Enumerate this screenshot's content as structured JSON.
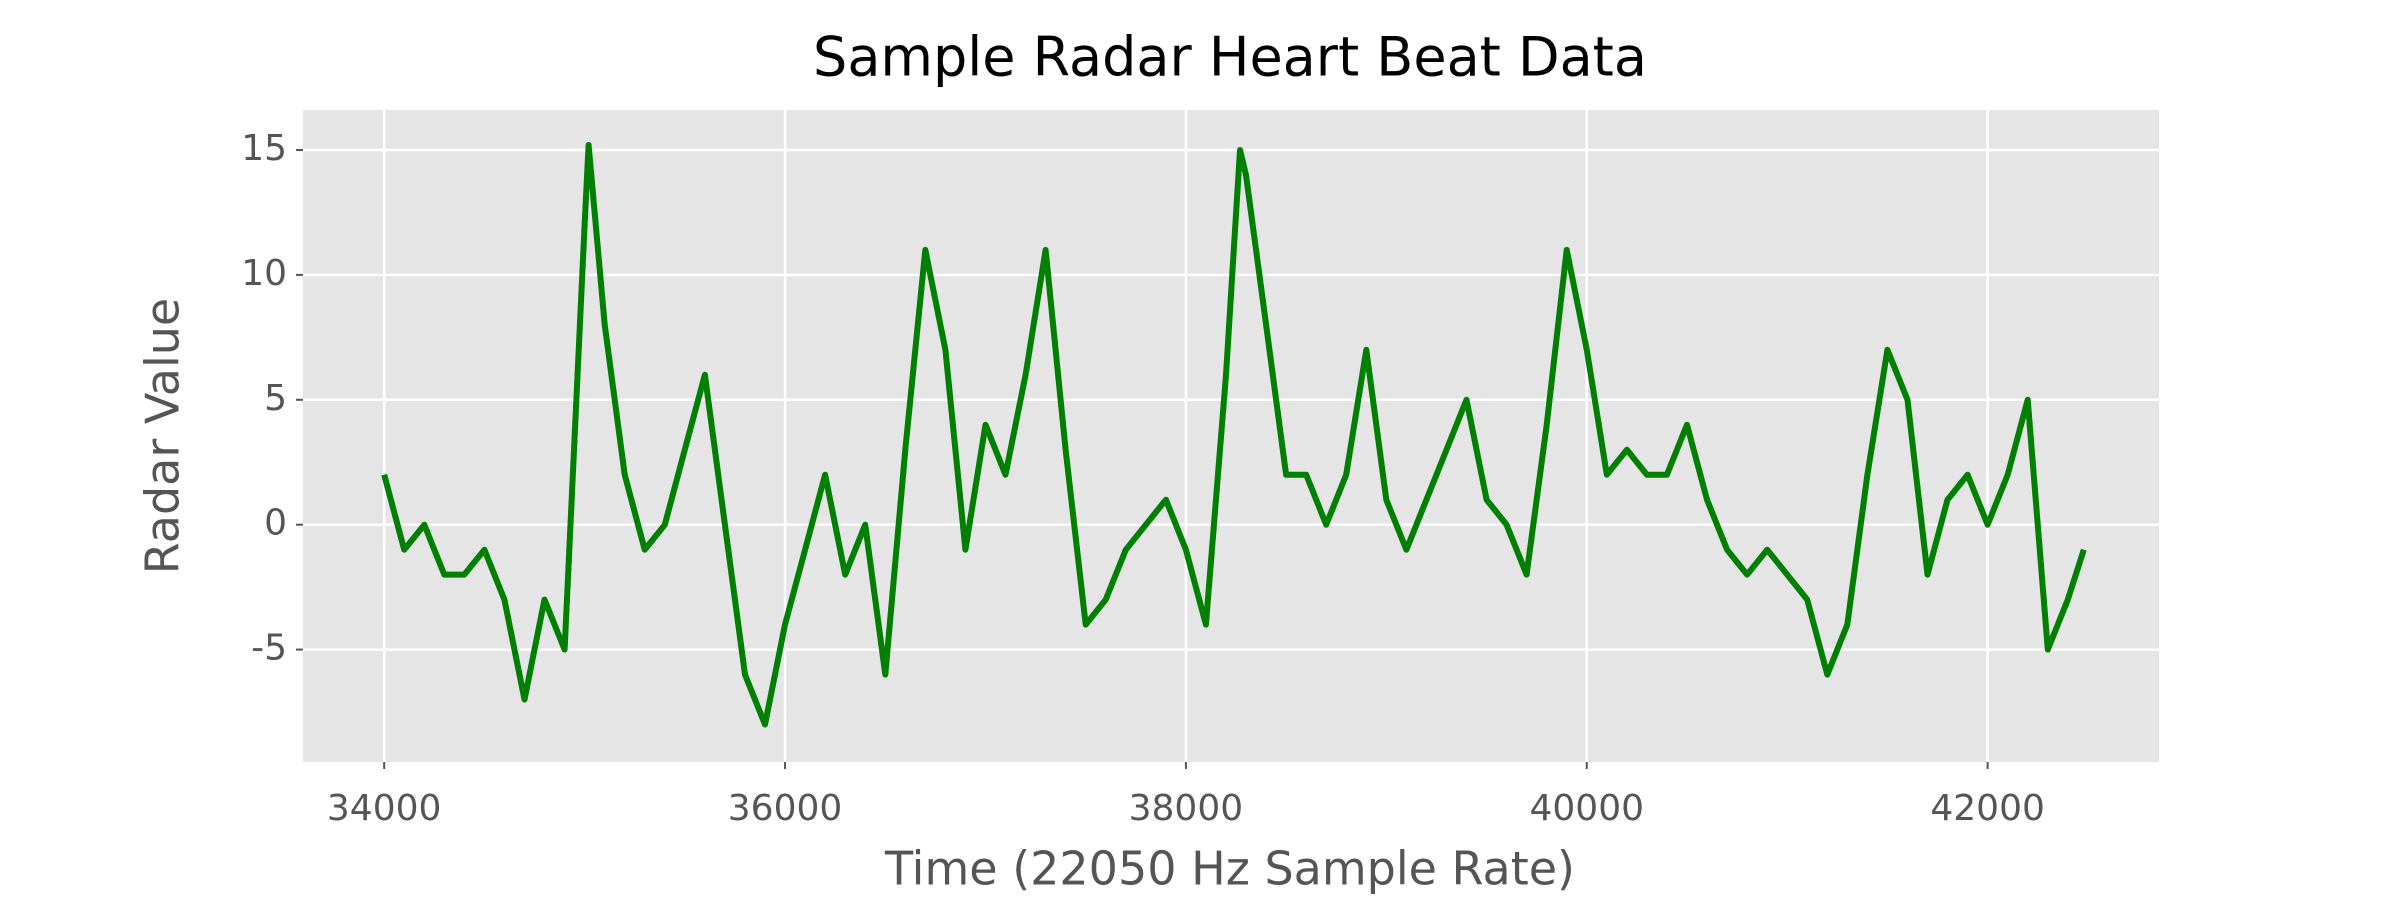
{
  "chart_data": {
    "type": "line",
    "title": "Sample Radar Heart Beat Data",
    "x_label": "Time (22050 Hz Sample Rate)",
    "y_label": "Radar Value",
    "xlim": [
      33595,
      42855
    ],
    "ylim": [
      -9.5,
      16.6
    ],
    "xticks": [
      34000,
      36000,
      38000,
      40000,
      42000
    ],
    "yticks": [
      -5,
      0,
      5,
      10,
      15
    ],
    "grid": true,
    "series": [
      {
        "name": "Radar",
        "color": "#008000",
        "x": [
          34000,
          34100,
          34200,
          34300,
          34400,
          34500,
          34600,
          34700,
          34800,
          34900,
          35000,
          35020,
          35100,
          35200,
          35300,
          35400,
          35500,
          35600,
          35700,
          35800,
          35900,
          36000,
          36100,
          36200,
          36300,
          36400,
          36500,
          36600,
          36700,
          36800,
          36900,
          37000,
          37100,
          37200,
          37300,
          37400,
          37500,
          37600,
          37700,
          37800,
          37900,
          38000,
          38100,
          38200,
          38270,
          38300,
          38400,
          38500,
          38600,
          38700,
          38800,
          38900,
          39000,
          39100,
          39200,
          39300,
          39400,
          39500,
          39600,
          39700,
          39800,
          39900,
          40000,
          40100,
          40200,
          40300,
          40400,
          40500,
          40600,
          40700,
          40800,
          40900,
          41000,
          41100,
          41200,
          41300,
          41400,
          41500,
          41600,
          41700,
          41800,
          41900,
          42000,
          42100,
          42200,
          42300,
          42400,
          42480
        ],
        "values": [
          2,
          -1,
          0,
          -2,
          -2,
          -1,
          -3,
          -7,
          -3,
          -5,
          12,
          15.2,
          8,
          2,
          -1,
          0,
          3,
          6,
          0,
          -6,
          -8,
          -4,
          -1,
          2,
          -2,
          0,
          -6,
          3,
          11,
          7,
          -1,
          4,
          2,
          6,
          11,
          3,
          -4,
          -3,
          -1,
          0,
          1,
          -1,
          -4,
          6,
          15,
          14,
          8,
          2,
          2,
          0,
          2,
          7,
          1,
          -1,
          1,
          3,
          5,
          1,
          0,
          -2,
          4,
          11,
          7,
          2,
          3,
          2,
          2,
          4,
          1,
          -1,
          -2,
          -1,
          -2,
          -3,
          -6,
          -4,
          2,
          7,
          5,
          -2,
          1,
          2,
          0,
          2,
          5,
          -5,
          -3,
          -1
        ]
      }
    ]
  }
}
